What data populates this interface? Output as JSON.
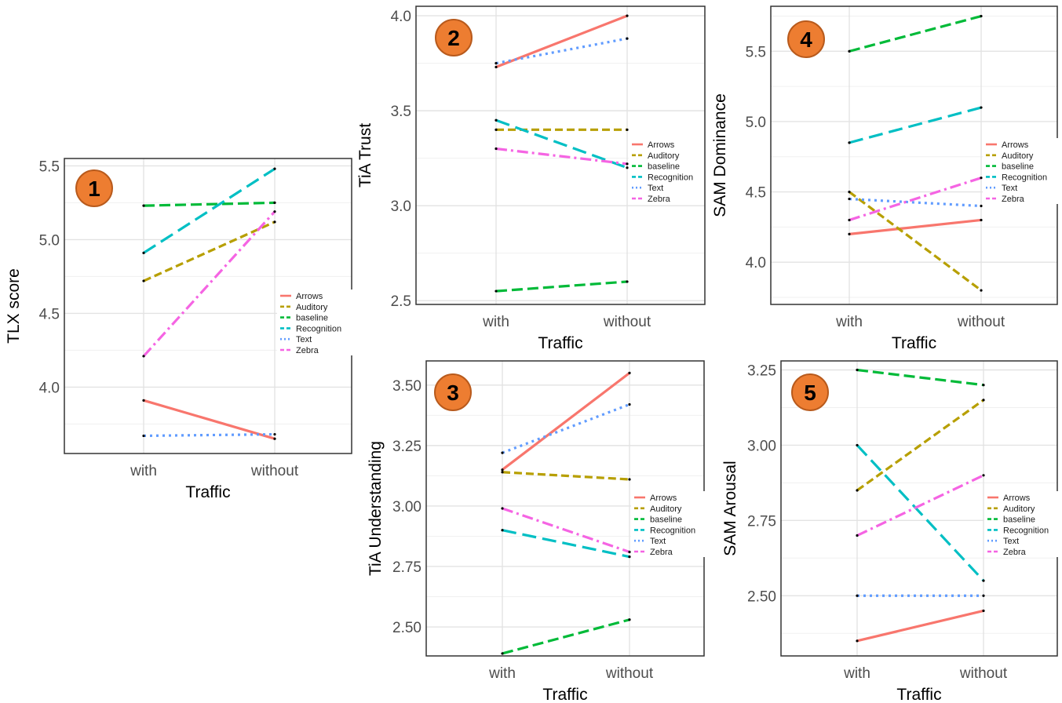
{
  "colors": {
    "Arrows": "#F8766D",
    "Auditory": "#B79F00",
    "baseline": "#00BA38",
    "Recognition": "#00BFC4",
    "Text": "#619CFF",
    "Zebra": "#F564E3",
    "badge": "#ED7D31"
  },
  "chart_data": [
    {
      "type": "line",
      "badge": "1",
      "categories": [
        "with",
        "without"
      ],
      "xlabel": "Traffic",
      "ylabel": "TLX score",
      "ylim": [
        3.55,
        5.55
      ],
      "yticks": [
        "4.0",
        "4.5",
        "5.0",
        "5.5"
      ],
      "series": [
        {
          "name": "Arrows",
          "values": [
            3.91,
            3.65
          ]
        },
        {
          "name": "Auditory",
          "values": [
            4.72,
            5.12
          ]
        },
        {
          "name": "baseline",
          "values": [
            5.23,
            5.25
          ]
        },
        {
          "name": "Recognition",
          "values": [
            4.91,
            5.48
          ]
        },
        {
          "name": "Text",
          "values": [
            3.67,
            3.68
          ]
        },
        {
          "name": "Zebra",
          "values": [
            4.21,
            5.19
          ]
        }
      ],
      "legend": "right"
    },
    {
      "type": "line",
      "badge": "2",
      "categories": [
        "with",
        "without"
      ],
      "xlabel": "Traffic",
      "ylabel": "TiA Trust",
      "ylim": [
        2.48,
        4.05
      ],
      "yticks": [
        "2.5",
        "3.0",
        "3.5",
        "4.0"
      ],
      "series": [
        {
          "name": "Arrows",
          "values": [
            3.73,
            4.0
          ]
        },
        {
          "name": "Auditory",
          "values": [
            3.4,
            3.4
          ]
        },
        {
          "name": "baseline",
          "values": [
            2.55,
            2.6
          ]
        },
        {
          "name": "Recognition",
          "values": [
            3.45,
            3.2
          ]
        },
        {
          "name": "Text",
          "values": [
            3.75,
            3.88
          ]
        },
        {
          "name": "Zebra",
          "values": [
            3.3,
            3.22
          ]
        }
      ],
      "legend": "right"
    },
    {
      "type": "line",
      "badge": "3",
      "categories": [
        "with",
        "without"
      ],
      "xlabel": "Traffic",
      "ylabel": "TiA Understanding",
      "ylim": [
        2.38,
        3.6
      ],
      "yticks": [
        "2.50",
        "2.75",
        "3.00",
        "3.25",
        "3.50"
      ],
      "series": [
        {
          "name": "Arrows",
          "values": [
            3.15,
            3.55
          ]
        },
        {
          "name": "Auditory",
          "values": [
            3.14,
            3.11
          ]
        },
        {
          "name": "baseline",
          "values": [
            2.39,
            2.53
          ]
        },
        {
          "name": "Recognition",
          "values": [
            2.9,
            2.79
          ]
        },
        {
          "name": "Text",
          "values": [
            3.22,
            3.42
          ]
        },
        {
          "name": "Zebra",
          "values": [
            2.99,
            2.81
          ]
        }
      ],
      "legend": "right"
    },
    {
      "type": "line",
      "badge": "4",
      "categories": [
        "with",
        "without"
      ],
      "xlabel": "Traffic",
      "ylabel": "SAM Dominance",
      "ylim": [
        3.7,
        5.82
      ],
      "yticks": [
        "4.0",
        "4.5",
        "5.0",
        "5.5"
      ],
      "series": [
        {
          "name": "Arrows",
          "values": [
            4.2,
            4.3
          ]
        },
        {
          "name": "Auditory",
          "values": [
            4.5,
            3.8
          ]
        },
        {
          "name": "baseline",
          "values": [
            5.5,
            5.75
          ]
        },
        {
          "name": "Recognition",
          "values": [
            4.85,
            5.1
          ]
        },
        {
          "name": "Text",
          "values": [
            4.45,
            4.4
          ]
        },
        {
          "name": "Zebra",
          "values": [
            4.3,
            4.6
          ]
        }
      ],
      "legend": "right"
    },
    {
      "type": "line",
      "badge": "5",
      "categories": [
        "with",
        "without"
      ],
      "xlabel": "Traffic",
      "ylabel": "SAM Arousal",
      "ylim": [
        2.3,
        3.28
      ],
      "yticks": [
        "2.50",
        "2.75",
        "3.00",
        "3.25"
      ],
      "series": [
        {
          "name": "Arrows",
          "values": [
            2.35,
            2.45
          ]
        },
        {
          "name": "Auditory",
          "values": [
            2.85,
            3.15
          ]
        },
        {
          "name": "baseline",
          "values": [
            3.25,
            3.2
          ]
        },
        {
          "name": "Recognition",
          "values": [
            3.0,
            2.55
          ]
        },
        {
          "name": "Text",
          "values": [
            2.5,
            2.5
          ]
        },
        {
          "name": "Zebra",
          "values": [
            2.7,
            2.9
          ]
        }
      ],
      "legend": "right"
    }
  ]
}
